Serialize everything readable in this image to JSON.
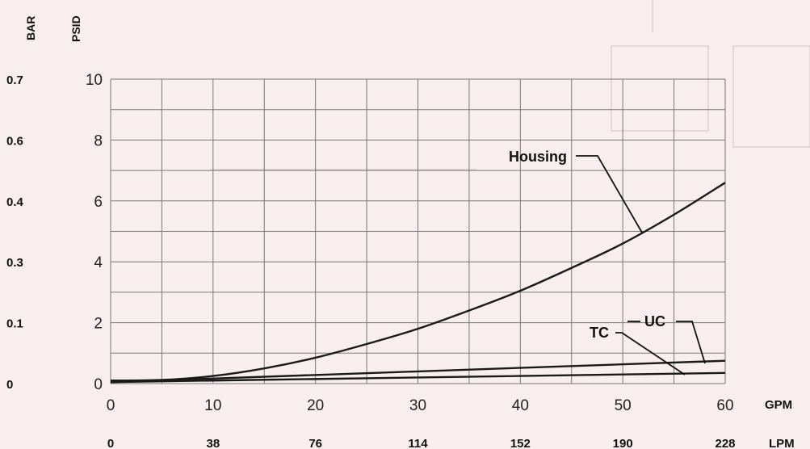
{
  "chart_data": {
    "type": "line",
    "left_axis_titles": {
      "bar": "BAR",
      "psid": "PSID"
    },
    "x_ticks_gpm": [
      "0",
      "10",
      "20",
      "30",
      "40",
      "50",
      "60"
    ],
    "x_ticks_lpm": [
      "0",
      "38",
      "76",
      "114",
      "152",
      "190",
      "228"
    ],
    "x_unit_gpm": "GPM",
    "x_unit_lpm": "LPM",
    "y_ticks_psid": [
      "0",
      "2",
      "4",
      "6",
      "8",
      "10"
    ],
    "y_ticks_bar": [
      "0",
      "0.1",
      "0.3",
      "0.4",
      "0.6",
      "0.7"
    ],
    "xlim": [
      0,
      60
    ],
    "ylim": [
      0,
      10
    ],
    "grid": true,
    "series": [
      {
        "name": "Housing",
        "x": [
          0,
          5,
          10,
          15,
          20,
          25,
          30,
          35,
          40,
          45,
          50,
          55,
          60
        ],
        "y": [
          0.1,
          0.12,
          0.25,
          0.5,
          0.85,
          1.3,
          1.8,
          2.4,
          3.05,
          3.8,
          4.6,
          5.55,
          6.6
        ]
      },
      {
        "name": "UC",
        "x": [
          0,
          60
        ],
        "y": [
          0.05,
          0.75
        ]
      },
      {
        "name": "TC",
        "x": [
          0,
          60
        ],
        "y": [
          0.05,
          0.35
        ]
      }
    ]
  }
}
